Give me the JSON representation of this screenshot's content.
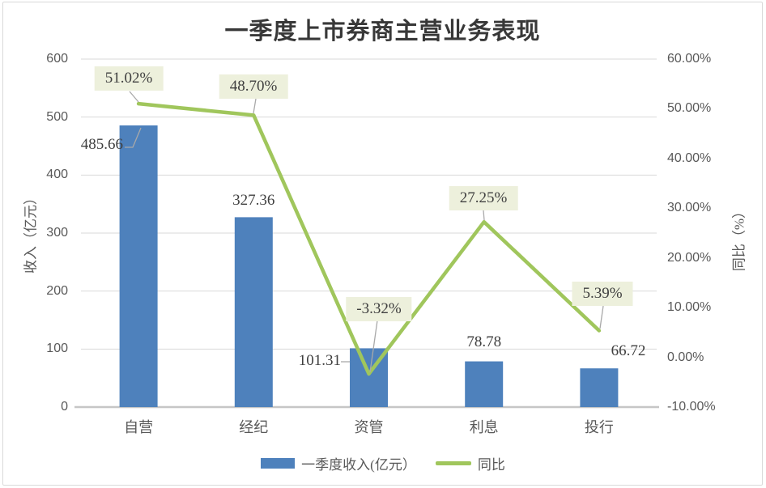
{
  "title": "一季度上市券商主营业务表现",
  "left_axis": {
    "title": "收入（亿元）",
    "ticks": [
      "600",
      "500",
      "400",
      "300",
      "200",
      "100",
      "0"
    ]
  },
  "right_axis": {
    "title": "同比（%）",
    "ticks": [
      "60.00%",
      "50.00%",
      "40.00%",
      "30.00%",
      "20.00%",
      "10.00%",
      "0.00%",
      "-10.00%"
    ]
  },
  "legend": {
    "bar_label": "一季度收入(亿元）",
    "line_label": "同比"
  },
  "chart_data": {
    "type": "bar",
    "subtype": "bar+line combo, dual axis",
    "title": "一季度上市券商主营业务表现",
    "categories": [
      "自营",
      "经纪",
      "资管",
      "利息",
      "投行"
    ],
    "series": [
      {
        "name": "一季度收入(亿元）",
        "type": "bar",
        "axis": "left",
        "values": [
          485.66,
          327.36,
          101.31,
          78.78,
          66.72
        ],
        "labels": [
          "485.66",
          "327.36",
          "101.31",
          "78.78",
          "66.72"
        ]
      },
      {
        "name": "同比",
        "type": "line",
        "axis": "right",
        "values": [
          51.02,
          48.7,
          -3.32,
          27.25,
          5.39
        ],
        "labels": [
          "51.02%",
          "48.70%",
          "-3.32%",
          "27.25%",
          "5.39%"
        ]
      }
    ],
    "ylabel_left": "收入（亿元）",
    "ylabel_right": "同比（%）",
    "ylim_left": [
      0,
      600
    ],
    "ylim_right": [
      -10,
      60
    ],
    "grid": true,
    "legend_position": "bottom"
  },
  "colors": {
    "bar": "#4E81BC",
    "line": "#A0C65C",
    "callout_bg": "#EDF0DC",
    "leader": "#A9A9A9",
    "grid": "#D9D9D9",
    "axis": "#C6C6C6",
    "border": "#D9D9D9"
  }
}
